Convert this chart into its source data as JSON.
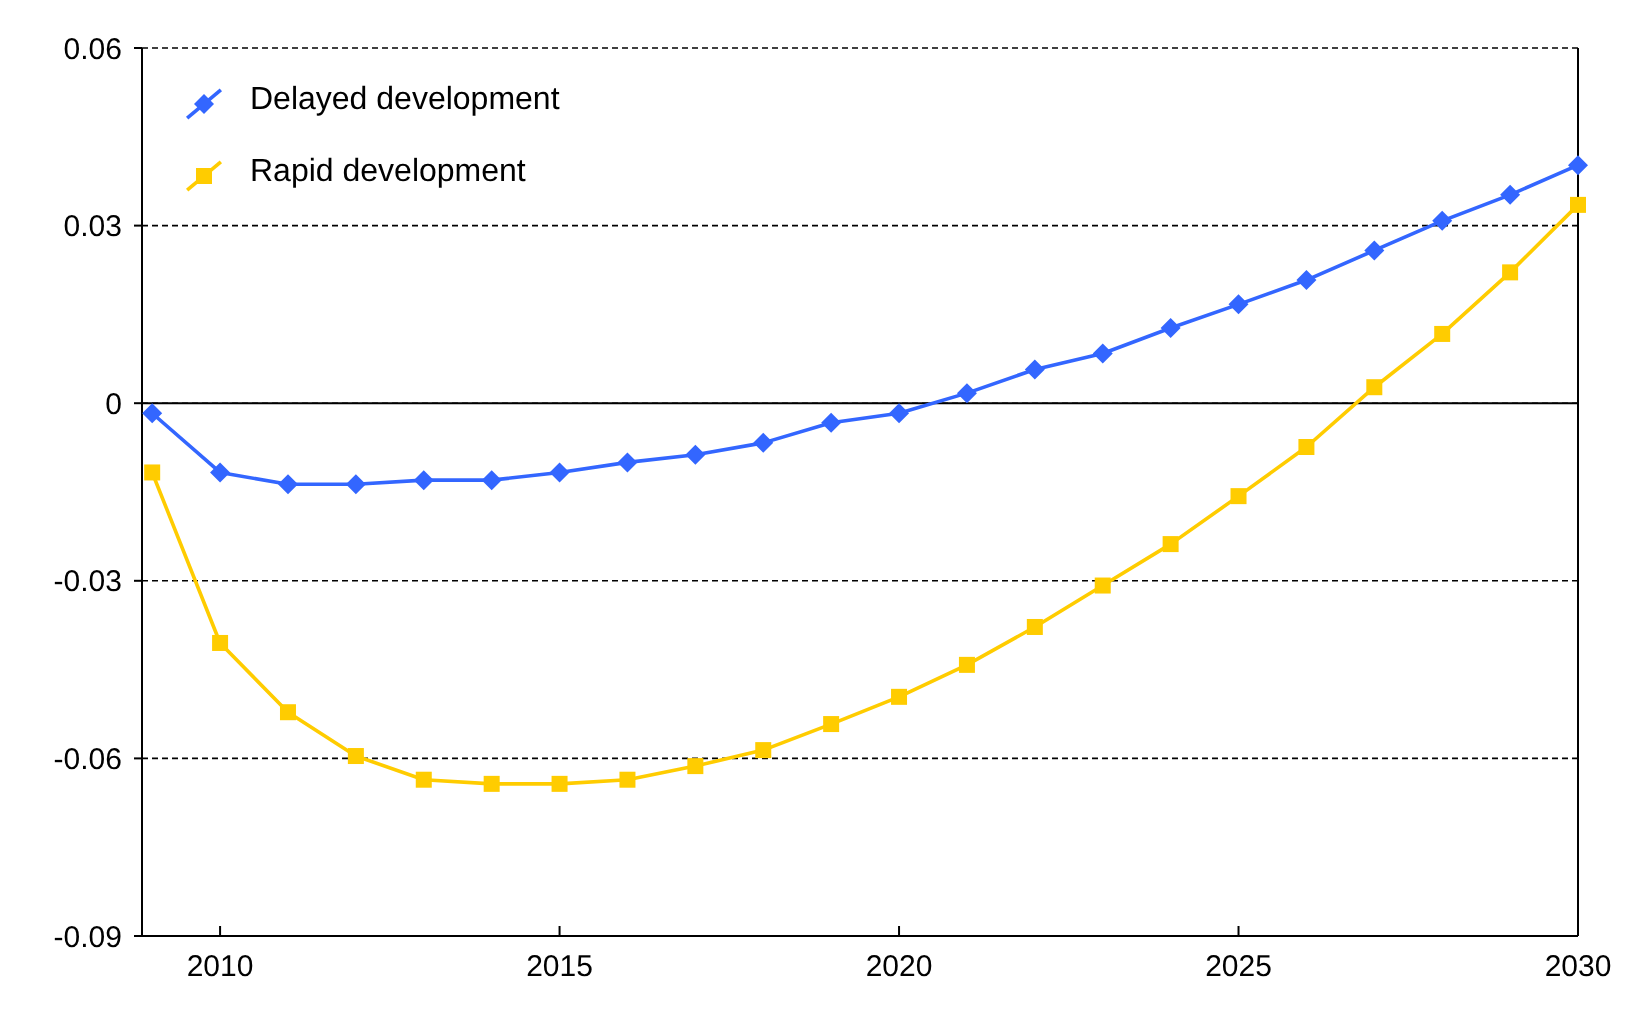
{
  "chart_data": {
    "type": "line",
    "x": [
      2009,
      2010,
      2011,
      2012,
      2013,
      2014,
      2015,
      2016,
      2017,
      2018,
      2019,
      2020,
      2021,
      2022,
      2023,
      2024,
      2025,
      2026,
      2027,
      2028,
      2029,
      2030
    ],
    "series": [
      {
        "name": "Delayed development",
        "color": "#3366ff",
        "marker": "diamond",
        "values": [
          -0.0017,
          -0.0117,
          -0.0137,
          -0.0137,
          -0.013,
          -0.013,
          -0.0117,
          -0.01,
          -0.0087,
          -0.0067,
          -0.0033,
          -0.0017,
          0.0017,
          0.0057,
          0.0084,
          0.0127,
          0.0167,
          0.0208,
          0.0258,
          0.0308,
          0.0352,
          0.0402
        ]
      },
      {
        "name": "Rapid development",
        "color": "#ffcc00",
        "marker": "square",
        "values": [
          -0.0117,
          -0.0405,
          -0.0522,
          -0.0596,
          -0.0636,
          -0.0643,
          -0.0643,
          -0.0636,
          -0.0613,
          -0.0586,
          -0.0542,
          -0.0496,
          -0.0442,
          -0.0378,
          -0.0308,
          -0.0238,
          -0.0157,
          -0.0074,
          0.0027,
          0.0117,
          0.0221,
          0.0335
        ]
      }
    ],
    "xlim": [
      2008.85,
      2030
    ],
    "xticks": [
      2010,
      2015,
      2020,
      2025,
      2030
    ],
    "ylim": [
      -0.09,
      0.06
    ],
    "yticks": [
      -0.09,
      -0.06,
      -0.03,
      0,
      0.03,
      0.06
    ],
    "grid": "y",
    "line_style": "solid",
    "legend": "top left",
    "ref_lines": [
      {
        "axis": "y",
        "value": 0,
        "color": "#000000",
        "line_style": "solid"
      }
    ]
  }
}
